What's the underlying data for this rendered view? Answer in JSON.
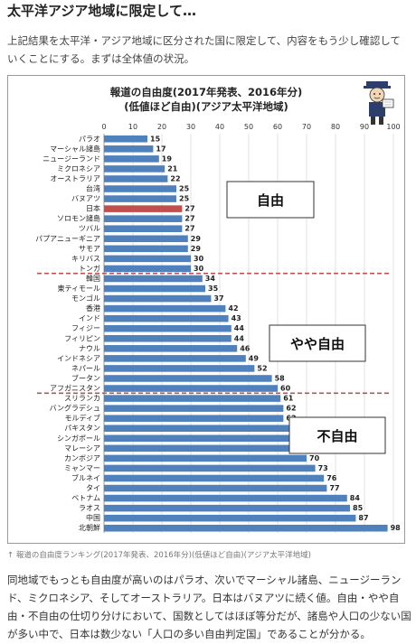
{
  "heading": "太平洋アジア地域に限定して…",
  "intro": "上記結果を太平洋・アジア地域に区分された国に限定して、内容をもう少し確認していくことにする。まずは全体値の状況。",
  "caption": "↑ 報道の自由度ランキング(2017年発表、2016年分)(低値ほど自由)(アジア太平洋地域)",
  "outro": "同地域でもっとも自由度が高いのはパラオ、次いでマーシャル諸島、ニュージーランド、ミクロネシア、そしてオーストラリア。日本はバヌアツに続く値。自由・やや自由・不自由の仕切り分けにおいて、国数としてはほぼ等分だが、諸島や人口の少ない国が多い中で、日本は数少ない「人口の多い自由判定国」であることが分かる。",
  "colors": {
    "bar": "#4f81bd",
    "highlight": "#c0504d",
    "divider": "#c0504d",
    "grid": "#d9d9d9"
  },
  "chart_data": {
    "type": "bar",
    "orientation": "horizontal",
    "title": "報道の自由度(2017年発表、2016年分)",
    "subtitle": "(低値ほど自由)(アジア太平洋地域)",
    "xlim": [
      0,
      100
    ],
    "x_ticks": [
      "0",
      "10",
      "20",
      "30",
      "40",
      "50",
      "60",
      "70",
      "80",
      "90",
      "100"
    ],
    "grid": true,
    "highlight": "日本",
    "categories": [
      "パラオ",
      "マーシャル諸島",
      "ニュージーランド",
      "ミクロネシア",
      "オーストラリア",
      "台湾",
      "バヌアツ",
      "日本",
      "ソロモン諸島",
      "ツバル",
      "パプアニューギニア",
      "サモア",
      "キリバス",
      "トンガ",
      "韓国",
      "東ティモール",
      "モンゴル",
      "香港",
      "インド",
      "フィジー",
      "フィリピン",
      "ナウル",
      "インドネシア",
      "ネパール",
      "ブータン",
      "アフガニスタン",
      "スリランカ",
      "バングラデシュ",
      "モルディブ",
      "パキスタン",
      "シンガポール",
      "マレーシア",
      "カンボジア",
      "ミャンマー",
      "ブルネイ",
      "タイ",
      "ベトナム",
      "ラオス",
      "中国",
      "北朝鮮"
    ],
    "values": [
      15,
      17,
      19,
      21,
      22,
      25,
      25,
      27,
      27,
      27,
      29,
      29,
      30,
      30,
      34,
      35,
      37,
      42,
      43,
      44,
      44,
      46,
      49,
      52,
      58,
      60,
      61,
      62,
      62,
      65,
      67,
      69,
      70,
      73,
      76,
      77,
      84,
      85,
      87,
      98
    ],
    "group_labels": [
      "自由",
      "やや自由",
      "不自由"
    ],
    "divider_after": [
      "トンガ",
      "アフガニスタン"
    ]
  }
}
